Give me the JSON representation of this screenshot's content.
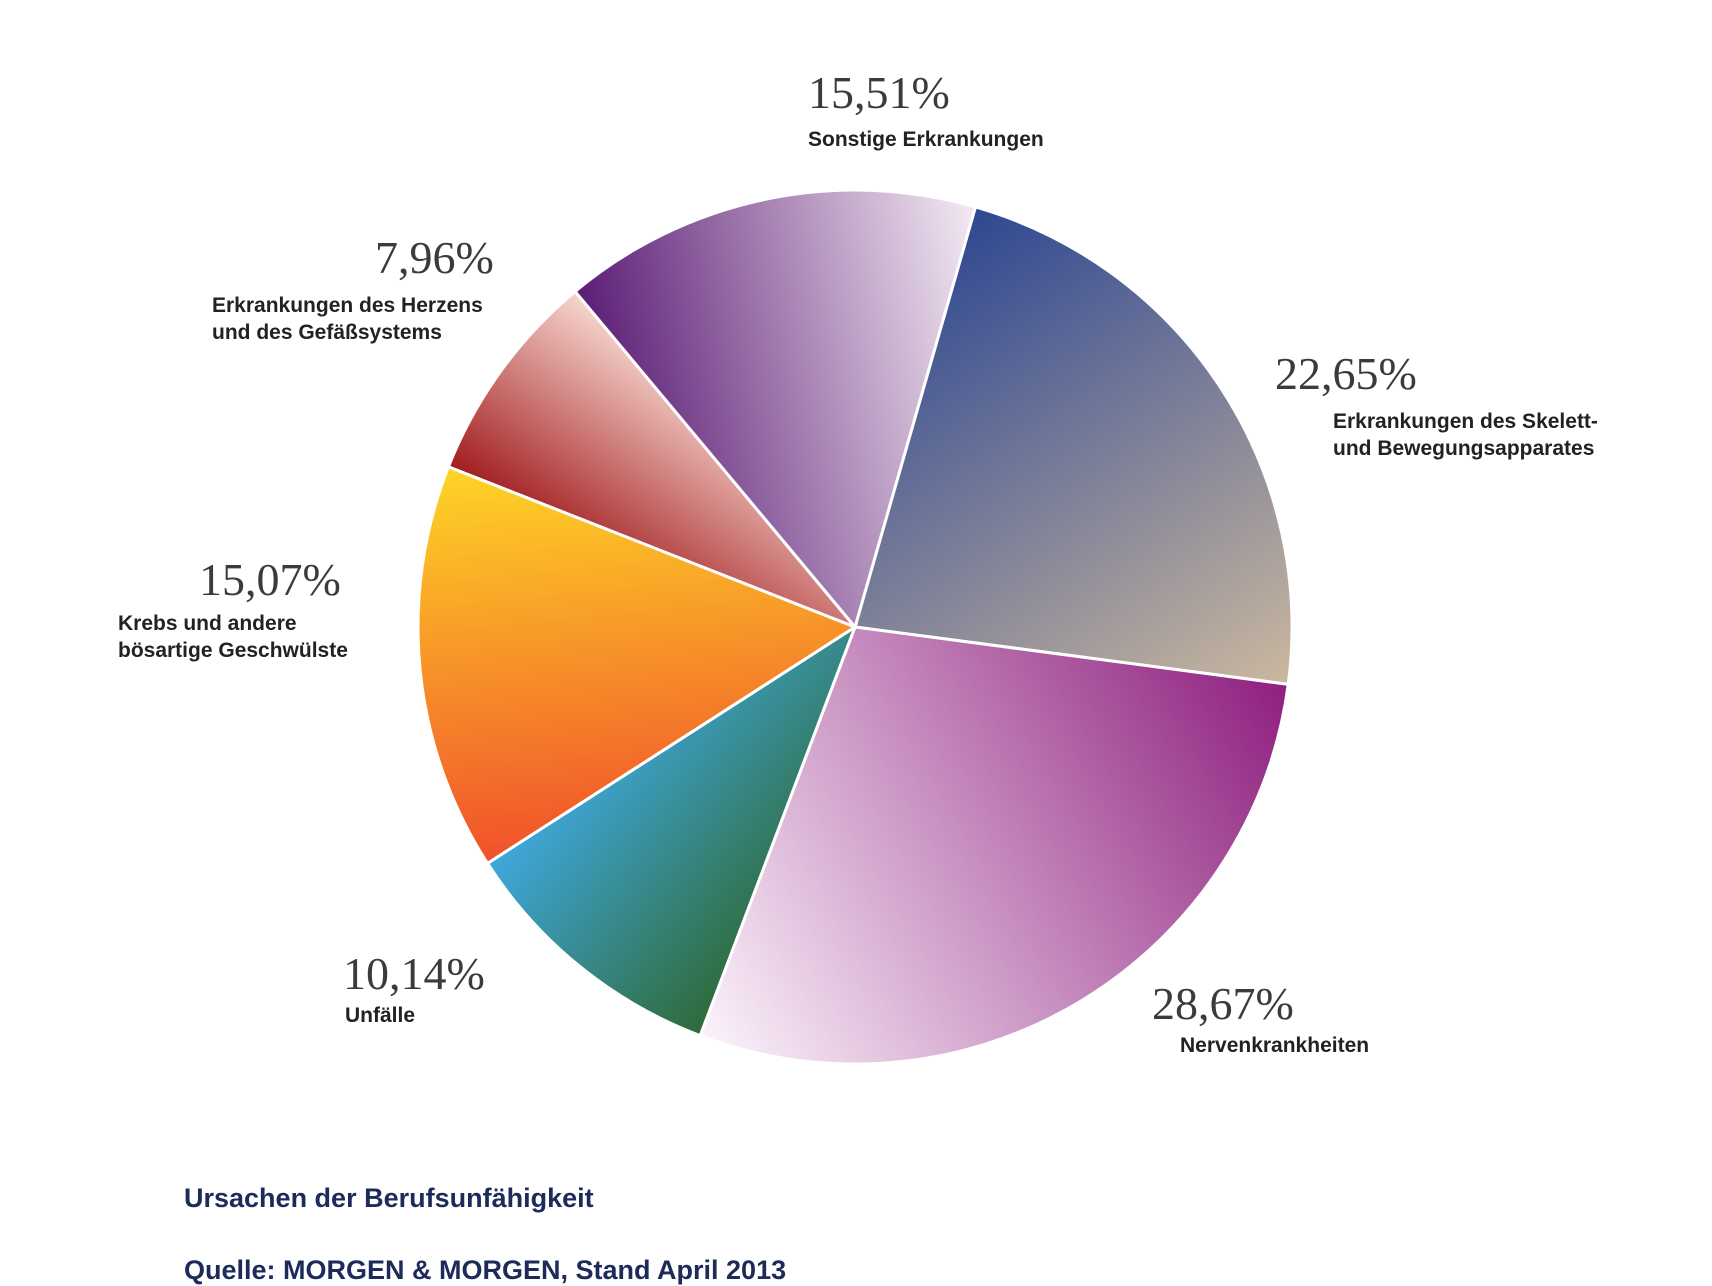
{
  "chart_data": {
    "type": "pie",
    "start_angle_deg": 74,
    "slices": [
      {
        "value_label": "22,65%",
        "label_lines": [
          "Erkrankungen des Skelett-",
          "und Bewegungsapparates"
        ],
        "value": 22.65,
        "colors": [
          "#cbb89f",
          "#2e4792"
        ]
      },
      {
        "value_label": "28,67%",
        "label_lines": [
          "Nervenkrankheiten"
        ],
        "value": 28.67,
        "colors": [
          "#fbf3fb",
          "#8e1f7e"
        ]
      },
      {
        "value_label": "10,14%",
        "label_lines": [
          "Unfälle"
        ],
        "value": 10.14,
        "colors": [
          "#3fa8dd",
          "#2f6a38"
        ]
      },
      {
        "value_label": "15,07%",
        "label_lines": [
          "Krebs und andere",
          "bösartige Geschwülste"
        ],
        "value": 15.07,
        "colors": [
          "#fed526",
          "#f0512b"
        ]
      },
      {
        "value_label": "7,96%",
        "label_lines": [
          "Erkrankungen des Herzens",
          "und des Gefäßsystems"
        ],
        "value": 7.96,
        "colors": [
          "#f7d6cf",
          "#a11b1e"
        ]
      },
      {
        "value_label": "15,51%",
        "label_lines": [
          "Sonstige Erkrankungen"
        ],
        "value": 15.51,
        "colors": [
          "#f3eaf3",
          "#5b1c75"
        ]
      }
    ]
  },
  "caption": {
    "title": "Ursachen der Berufsunfähigkeit",
    "source": "Quelle: MORGEN & MORGEN, Stand April 2013"
  }
}
